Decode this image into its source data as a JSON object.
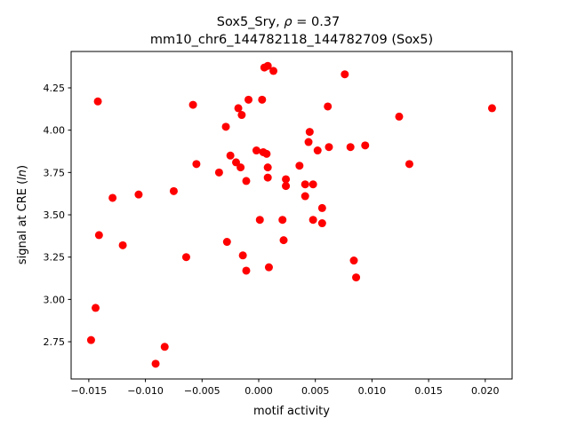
{
  "chart_data": {
    "type": "scatter",
    "title_line1_prefix": "Sox5_Sry, ",
    "title_rho_symbol": "ρ",
    "title_rho_value": " = 0.37",
    "title_line2": "mm10_chr6_144782118_144782709 (Sox5)",
    "xlabel": "motif activity",
    "ylabel_prefix": "signal at CRE (",
    "ylabel_italic": "ln",
    "ylabel_suffix": ")",
    "xlim": [
      -0.01656,
      0.02237
    ],
    "ylim": [
      2.53,
      4.465
    ],
    "xticks": [
      -0.015,
      -0.01,
      -0.005,
      0.0,
      0.005,
      0.01,
      0.015,
      0.02
    ],
    "xtick_labels": [
      "−0.015",
      "−0.010",
      "−0.005",
      "0.000",
      "0.005",
      "0.010",
      "0.015",
      "0.020"
    ],
    "yticks": [
      2.75,
      3.0,
      3.25,
      3.5,
      3.75,
      4.0,
      4.25
    ],
    "ytick_labels": [
      "2.75",
      "3.00",
      "3.25",
      "3.50",
      "3.75",
      "4.00",
      "4.25"
    ],
    "marker_color": "#ff0000",
    "points": [
      [
        -0.0142,
        4.17
      ],
      [
        -0.0058,
        4.15
      ],
      [
        0.0005,
        4.37
      ],
      [
        0.0008,
        4.38
      ],
      [
        0.0013,
        4.35
      ],
      [
        0.0076,
        4.33
      ],
      [
        -0.0009,
        4.18
      ],
      [
        0.0003,
        4.18
      ],
      [
        -0.0018,
        4.13
      ],
      [
        -0.0015,
        4.09
      ],
      [
        0.0061,
        4.14
      ],
      [
        0.0124,
        4.08
      ],
      [
        0.0206,
        4.13
      ],
      [
        -0.0029,
        4.02
      ],
      [
        0.0045,
        3.99
      ],
      [
        0.0044,
        3.93
      ],
      [
        0.0052,
        3.88
      ],
      [
        0.0062,
        3.9
      ],
      [
        0.0081,
        3.9
      ],
      [
        0.0094,
        3.91
      ],
      [
        -0.0002,
        3.88
      ],
      [
        0.0004,
        3.87
      ],
      [
        0.0007,
        3.86
      ],
      [
        -0.0025,
        3.85
      ],
      [
        -0.002,
        3.81
      ],
      [
        -0.0016,
        3.78
      ],
      [
        0.0008,
        3.78
      ],
      [
        0.0133,
        3.8
      ],
      [
        -0.0055,
        3.8
      ],
      [
        0.0036,
        3.79
      ],
      [
        -0.0035,
        3.75
      ],
      [
        0.0008,
        3.72
      ],
      [
        -0.0011,
        3.7
      ],
      [
        0.0024,
        3.71
      ],
      [
        0.0024,
        3.67
      ],
      [
        0.0041,
        3.68
      ],
      [
        0.0048,
        3.68
      ],
      [
        -0.0075,
        3.64
      ],
      [
        -0.0106,
        3.62
      ],
      [
        -0.0129,
        3.6
      ],
      [
        0.0041,
        3.61
      ],
      [
        0.0056,
        3.54
      ],
      [
        0.0001,
        3.47
      ],
      [
        0.0021,
        3.47
      ],
      [
        0.0048,
        3.47
      ],
      [
        0.0056,
        3.45
      ],
      [
        -0.0141,
        3.38
      ],
      [
        0.0022,
        3.35
      ],
      [
        -0.0028,
        3.34
      ],
      [
        -0.012,
        3.32
      ],
      [
        -0.0064,
        3.25
      ],
      [
        -0.0014,
        3.26
      ],
      [
        0.0084,
        3.23
      ],
      [
        -0.0011,
        3.17
      ],
      [
        0.0009,
        3.19
      ],
      [
        0.0086,
        3.13
      ],
      [
        -0.0144,
        2.95
      ],
      [
        -0.0148,
        2.76
      ],
      [
        -0.0083,
        2.72
      ],
      [
        -0.0091,
        2.62
      ]
    ]
  }
}
